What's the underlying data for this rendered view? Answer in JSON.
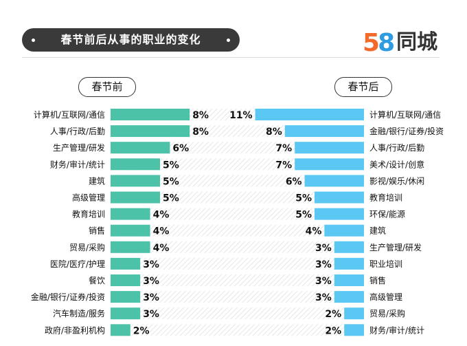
{
  "title": "春节前后从事的职业的变化",
  "logo": {
    "digit1": "5",
    "digit2": "8",
    "name": "同城"
  },
  "chart_data": [
    {
      "type": "bar",
      "title": "春节前",
      "color": "#4cc3a8",
      "categories": [
        "计算机/互联网/通信",
        "人事/行政/后勤",
        "生产管理/研发",
        "财务/审计/统计",
        "建筑",
        "高级管理",
        "教育培训",
        "销售",
        "贸易/采购",
        "医院/医疗/护理",
        "餐饮",
        "金融/银行/证券/投资",
        "汽车制造/服务",
        "政府/非盈利机构"
      ],
      "values": [
        8,
        8,
        6,
        5,
        5,
        5,
        4,
        4,
        4,
        3,
        3,
        3,
        3,
        2
      ],
      "value_labels": [
        "8%",
        "8%",
        "6%",
        "5%",
        "5%",
        "5%",
        "4%",
        "4%",
        "4%",
        "3%",
        "3%",
        "3%",
        "3%",
        "2%"
      ]
    },
    {
      "type": "bar",
      "title": "春节后",
      "color": "#5ac8f2",
      "categories": [
        "计算机/互联网/通信",
        "金融/银行/证券/投资",
        "人事/行政/后勤",
        "美术/设计/创意",
        "影视/娱乐/休闲",
        "教育培训",
        "环保/能源",
        "建筑",
        "生产管理/研发",
        "职业培训",
        "销售",
        "高级管理",
        "贸易/采购",
        "财务/审计/统计"
      ],
      "values": [
        11,
        8,
        7,
        7,
        6,
        5,
        5,
        4,
        3,
        3,
        3,
        3,
        2,
        2
      ],
      "value_labels": [
        "11%",
        "8%",
        "7%",
        "7%",
        "6%",
        "5%",
        "5%",
        "4%",
        "3%",
        "3%",
        "3%",
        "3%",
        "2%",
        "2%"
      ]
    }
  ]
}
